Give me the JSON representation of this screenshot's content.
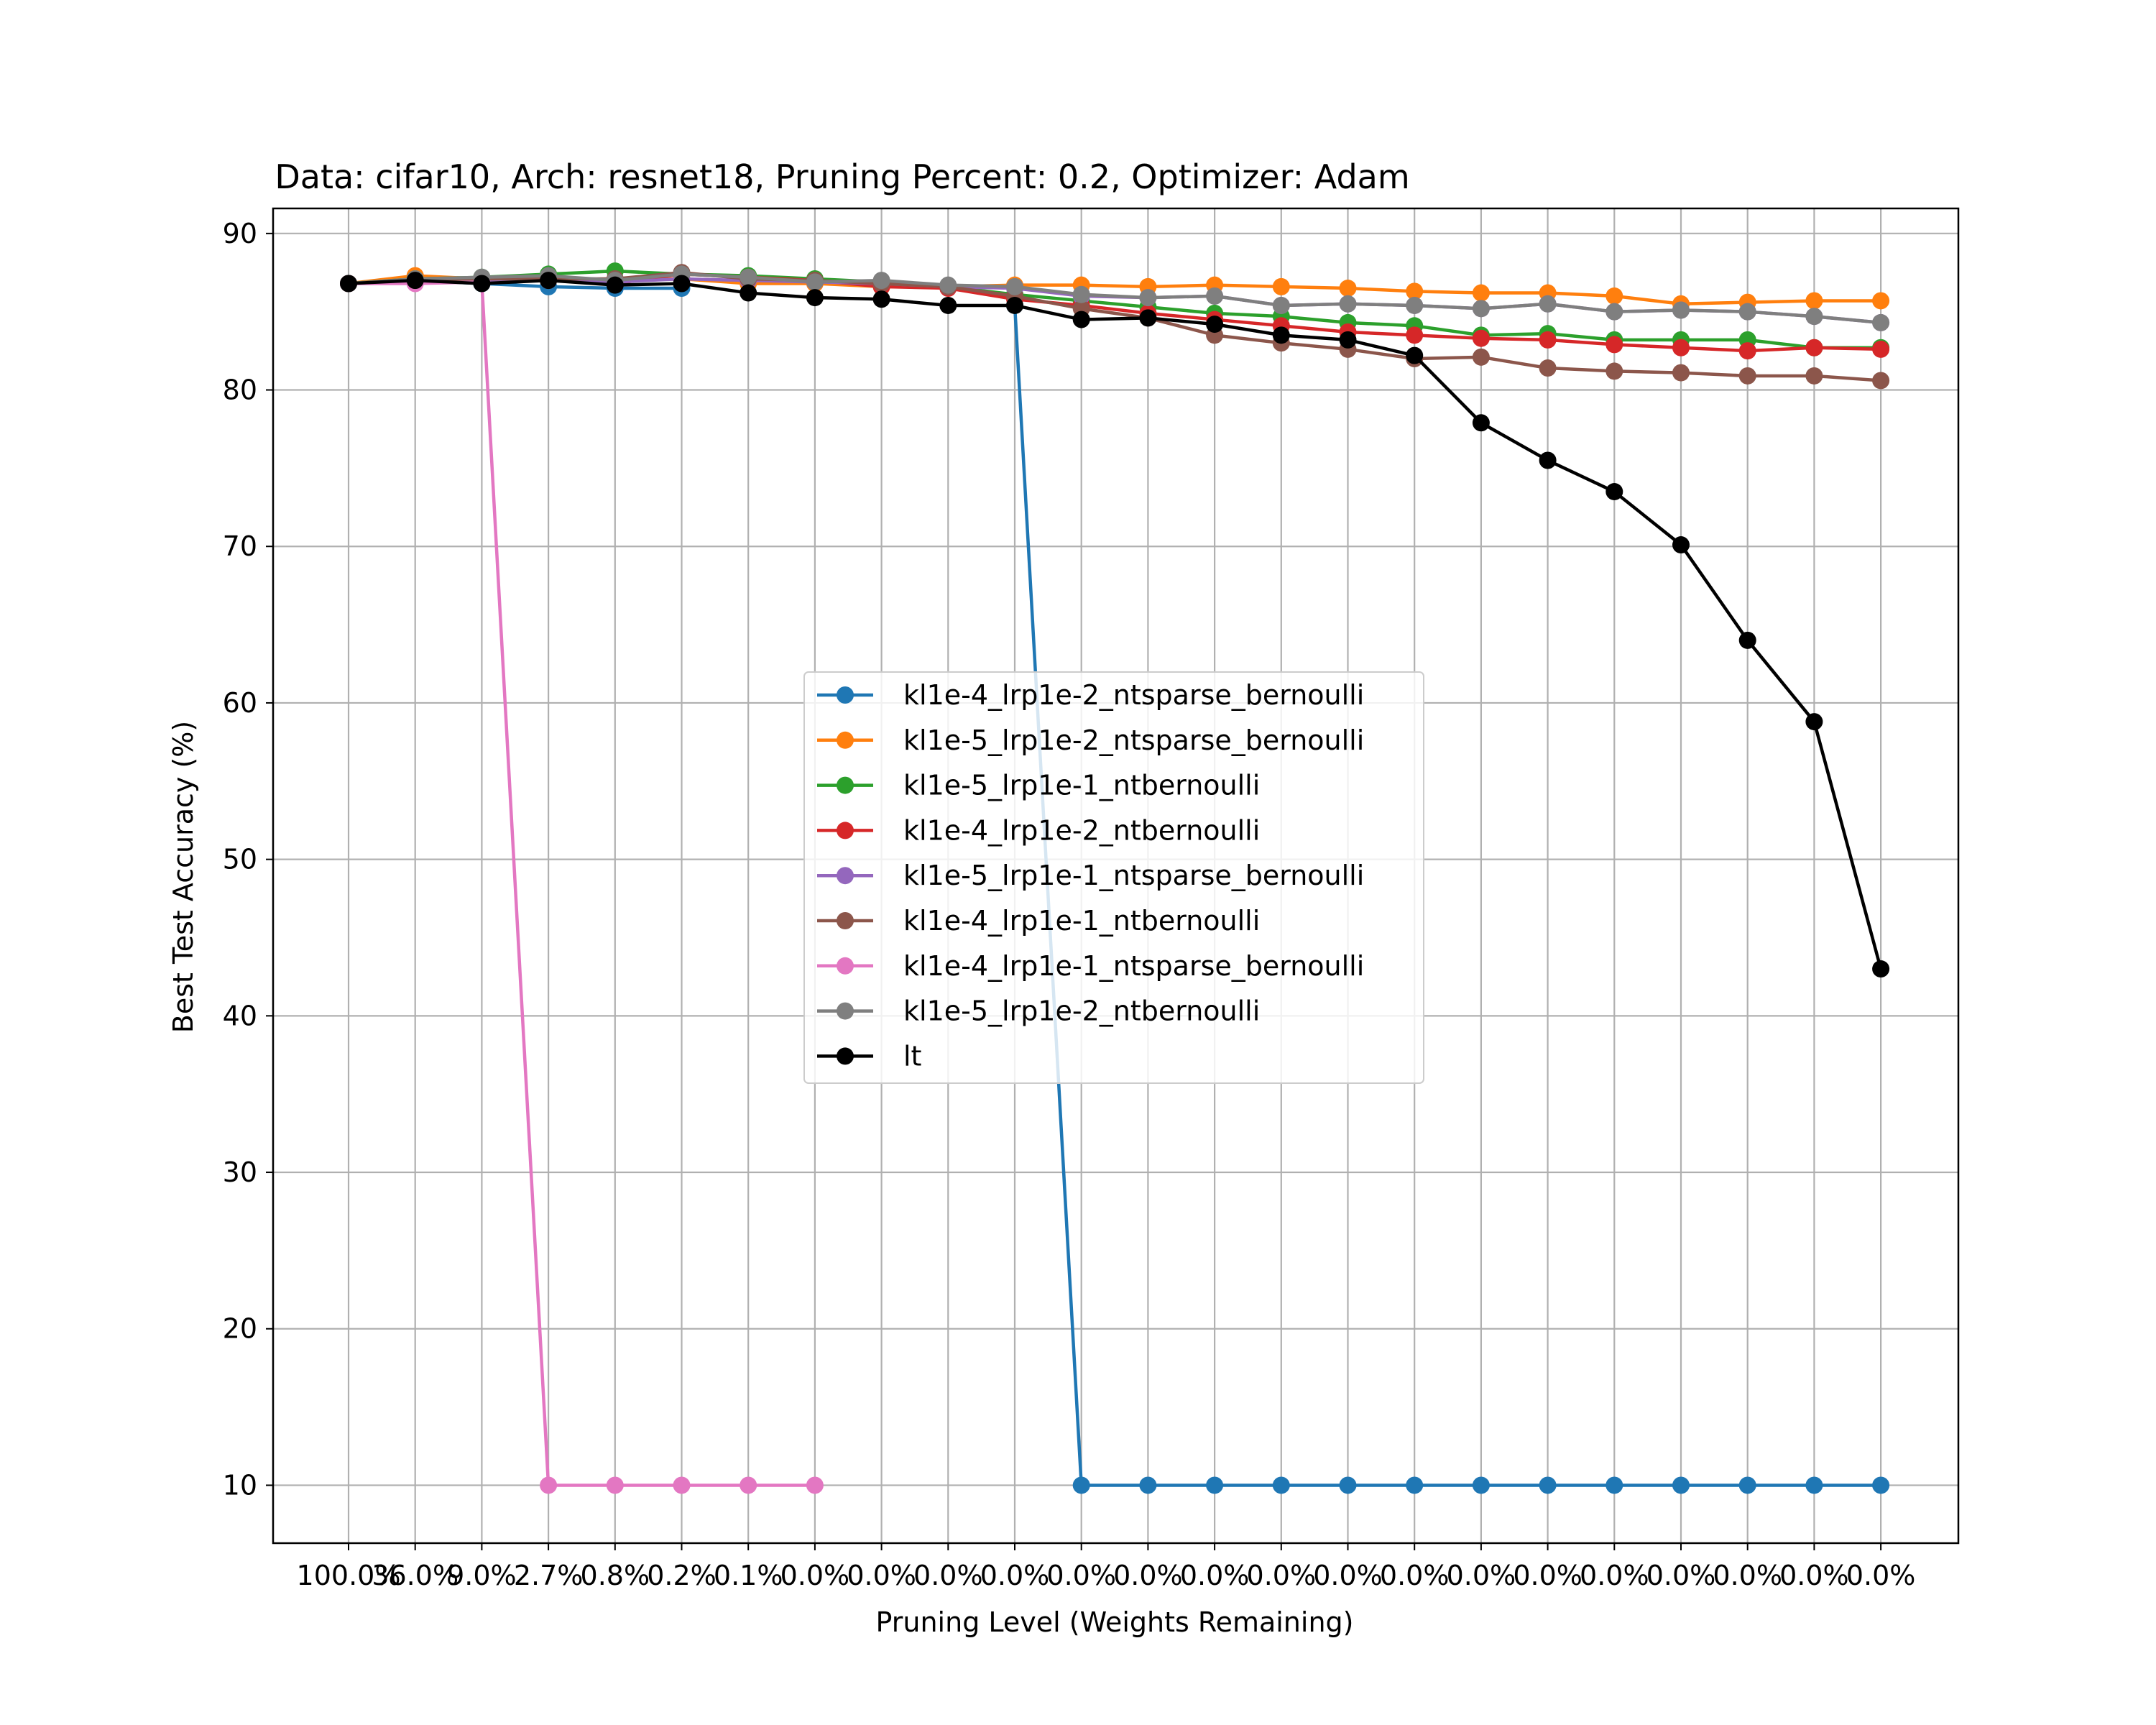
{
  "chart_data": {
    "type": "line",
    "title": "Data: cifar10, Arch: resnet18, Pruning Percent: 0.2, Optimizer: Adam",
    "xlabel": "Pruning Level (Weights Remaining)",
    "ylabel": "Best Test Accuracy (%)",
    "categories": [
      "100.0%",
      "36.0%",
      "9.0%",
      "2.7%",
      "0.8%",
      "0.2%",
      "0.1%",
      "0.0%",
      "0.0%",
      "0.0%",
      "0.0%",
      "0.0%",
      "0.0%",
      "0.0%",
      "0.0%",
      "0.0%",
      "0.0%",
      "0.0%",
      "0.0%",
      "0.0%",
      "0.0%",
      "0.0%",
      "0.0%",
      "0.0%"
    ],
    "ylim": [
      6.3,
      91.6
    ],
    "yticks": [
      10,
      20,
      30,
      40,
      50,
      60,
      70,
      80,
      90
    ],
    "grid": true,
    "legend_position": "center",
    "series": [
      {
        "name": "kl1e-4_lrp1e-2_ntsparse_bernoulli",
        "color": "#1f77b4",
        "values": [
          86.8,
          87.0,
          86.8,
          86.6,
          86.5,
          86.5,
          null,
          null,
          null,
          null,
          85.4,
          10.0,
          10.0,
          10.0,
          10.0,
          10.0,
          10.0,
          10.0,
          10.0,
          10.0,
          10.0,
          10.0,
          10.0,
          10.0
        ]
      },
      {
        "name": "kl1e-5_lrp1e-2_ntsparse_bernoulli",
        "color": "#ff7f0e",
        "values": [
          86.8,
          87.3,
          87.1,
          87.2,
          87.0,
          87.1,
          86.8,
          86.8,
          86.6,
          86.6,
          86.7,
          86.7,
          86.6,
          86.7,
          86.6,
          86.5,
          86.3,
          86.2,
          86.2,
          86.0,
          85.5,
          85.6,
          85.7,
          85.7
        ]
      },
      {
        "name": "kl1e-5_lrp1e-1_ntbernoulli",
        "color": "#2ca02c",
        "values": [
          86.8,
          87.1,
          87.2,
          87.4,
          87.6,
          87.4,
          87.3,
          87.1,
          86.9,
          86.6,
          86.1,
          85.7,
          85.3,
          84.9,
          84.7,
          84.3,
          84.1,
          83.5,
          83.6,
          83.2,
          83.2,
          83.2,
          82.7,
          82.7
        ]
      },
      {
        "name": "kl1e-4_lrp1e-2_ntbernoulli",
        "color": "#d62728",
        "values": [
          86.8,
          87.0,
          86.9,
          87.0,
          86.8,
          87.4,
          87.2,
          87.0,
          86.6,
          86.5,
          85.8,
          85.4,
          84.9,
          84.5,
          84.1,
          83.7,
          83.5,
          83.3,
          83.2,
          82.9,
          82.7,
          82.5,
          82.7,
          82.6
        ]
      },
      {
        "name": "kl1e-5_lrp1e-1_ntsparse_bernoulli",
        "color": "#9467bd",
        "values": [
          86.8,
          87.0,
          86.9,
          87.1,
          86.9,
          87.1,
          87.0,
          86.9,
          86.8,
          86.6,
          86.5,
          86.0,
          85.9,
          86.0,
          85.4,
          85.5,
          85.4,
          85.2,
          85.5,
          85.0,
          85.1,
          85.0,
          84.7,
          84.3
        ]
      },
      {
        "name": "kl1e-4_lrp1e-1_ntbernoulli",
        "color": "#8c564b",
        "values": [
          86.8,
          87.0,
          87.1,
          87.1,
          87.1,
          87.5,
          87.1,
          87.0,
          86.8,
          86.6,
          86.0,
          85.2,
          84.6,
          83.5,
          83.0,
          82.6,
          82.0,
          82.1,
          81.4,
          81.2,
          81.1,
          80.9,
          80.9,
          80.6
        ]
      },
      {
        "name": "kl1e-4_lrp1e-1_ntsparse_bernoulli",
        "color": "#e377c2",
        "values": [
          86.8,
          86.8,
          86.9,
          10.0,
          10.0,
          10.0,
          10.0,
          10.0,
          null,
          null,
          null,
          null,
          null,
          null,
          null,
          null,
          null,
          null,
          null,
          null,
          null,
          null,
          null,
          null
        ]
      },
      {
        "name": "kl1e-5_lrp1e-2_ntbernoulli",
        "color": "#7f7f7f",
        "values": [
          86.8,
          87.1,
          87.2,
          87.3,
          87.0,
          87.4,
          87.2,
          86.9,
          87.0,
          86.7,
          86.6,
          86.1,
          85.9,
          86.0,
          85.4,
          85.5,
          85.4,
          85.2,
          85.5,
          85.0,
          85.1,
          85.0,
          84.7,
          84.3
        ]
      },
      {
        "name": "lt",
        "color": "#000000",
        "values": [
          86.8,
          87.0,
          86.8,
          87.0,
          86.7,
          86.8,
          86.2,
          85.9,
          85.8,
          85.4,
          85.4,
          84.5,
          84.6,
          84.2,
          83.5,
          83.2,
          82.2,
          77.9,
          75.5,
          73.5,
          70.1,
          64.0,
          58.8,
          43.0
        ]
      }
    ]
  }
}
